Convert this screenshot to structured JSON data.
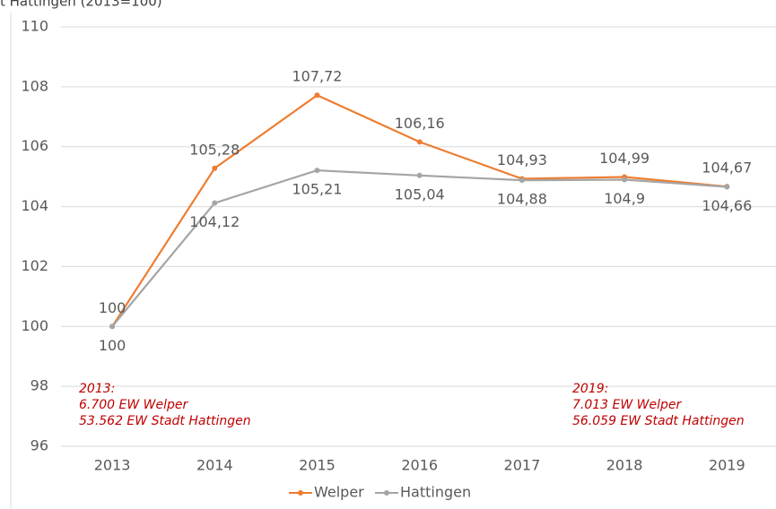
{
  "chart_data": {
    "type": "line",
    "title": "t Hattingen (2013=100)",
    "categories": [
      "2013",
      "2014",
      "2015",
      "2016",
      "2017",
      "2018",
      "2019"
    ],
    "series": [
      {
        "name": "Welper",
        "color": "#ed7d31",
        "values": [
          100,
          105.28,
          107.72,
          106.16,
          104.93,
          104.99,
          104.67
        ],
        "value_labels": [
          "100",
          "105,28",
          "107,72",
          "106,16",
          "104,93",
          "104,99",
          "104,67"
        ]
      },
      {
        "name": "Hattingen",
        "color": "#a5a5a5",
        "values": [
          100,
          104.12,
          105.21,
          105.04,
          104.88,
          104.9,
          104.66
        ],
        "value_labels": [
          "100",
          "104,12",
          "105,21",
          "105,04",
          "104,88",
          "104,9",
          "104,66"
        ]
      }
    ],
    "ylim": [
      96,
      110
    ],
    "yticks": [
      96,
      98,
      100,
      102,
      104,
      106,
      108,
      110
    ],
    "grid": true,
    "legend": "bottom",
    "annotations": [
      [
        "2013:",
        "6.700 EW Welper",
        "53.562 EW Stadt Hattingen"
      ],
      [
        "2019:",
        "7.013 EW Welper",
        "56.059 EW Stadt Hattingen"
      ]
    ]
  }
}
